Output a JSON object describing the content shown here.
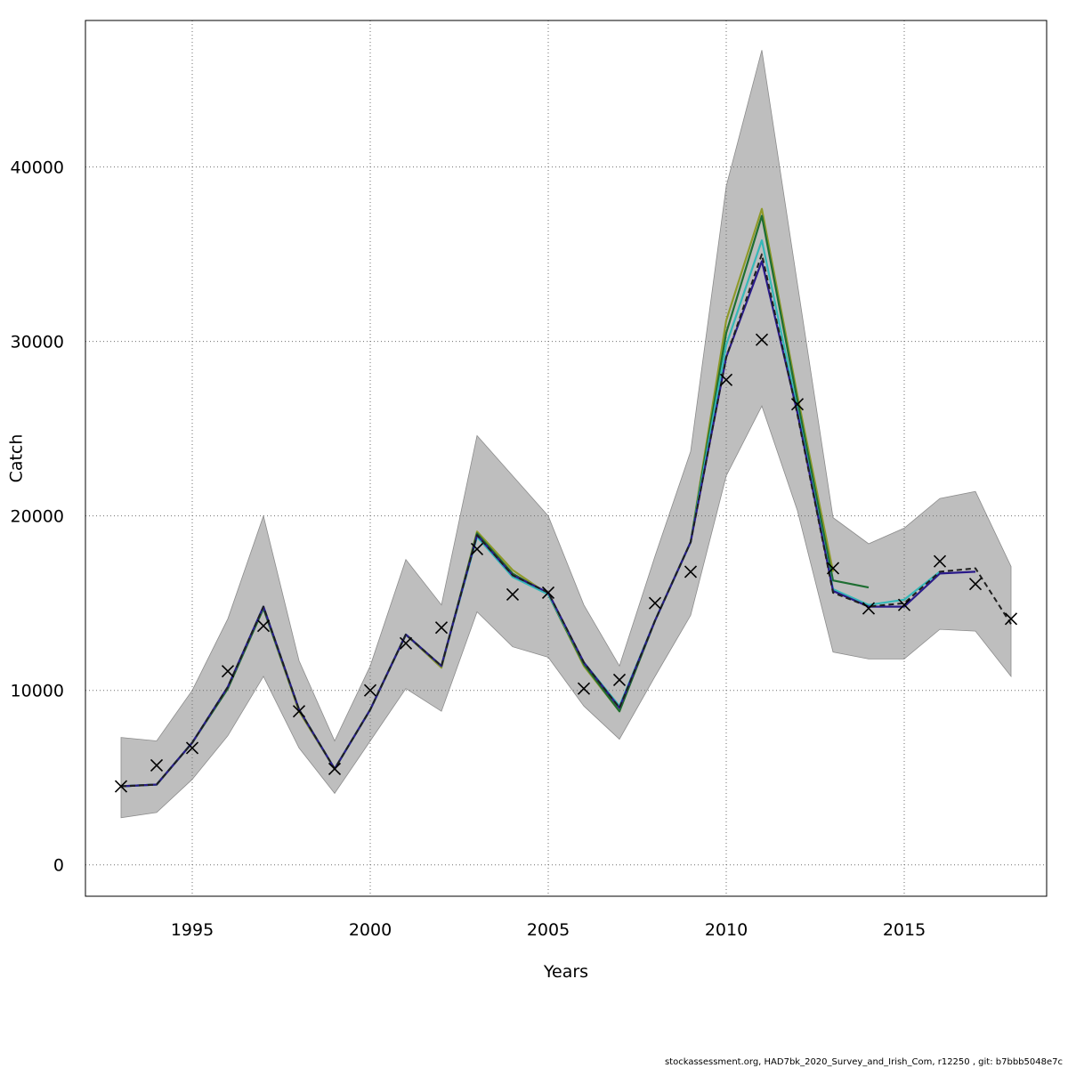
{
  "chart_data": {
    "type": "line",
    "title": "",
    "xlabel": "Years",
    "ylabel": "Catch",
    "xlim": [
      1992,
      2019
    ],
    "ylim": [
      -1800,
      48400
    ],
    "x_ticks": [
      1995,
      2000,
      2005,
      2010,
      2015
    ],
    "y_ticks": [
      0,
      10000,
      20000,
      30000,
      40000
    ],
    "grid": true,
    "legend": "none",
    "colors": {
      "band": "#bebebe",
      "band_edge": "#8c8c8c",
      "observed": "#000000",
      "grid": "#6e6e6e",
      "series": [
        "#1f1f1f",
        "#2a1a8a",
        "#35b8b8",
        "#1e6e32",
        "#8f9a2a"
      ]
    },
    "confidence_band": {
      "x": [
        1993,
        1994,
        1995,
        1996,
        1997,
        1998,
        1999,
        2000,
        2001,
        2002,
        2003,
        2004,
        2005,
        2006,
        2007,
        2008,
        2009,
        2010,
        2011,
        2012,
        2013,
        2014,
        2015,
        2016,
        2017,
        2018
      ],
      "upper": [
        7300,
        7100,
        10000,
        14100,
        20000,
        11700,
        7100,
        11400,
        17500,
        14900,
        24600,
        22300,
        20000,
        14900,
        11400,
        17700,
        23700,
        38900,
        46700,
        33300,
        19900,
        18400,
        19300,
        21000,
        21400,
        17100
      ],
      "lower": [
        2700,
        3000,
        4900,
        7400,
        10800,
        6700,
        4100,
        7100,
        10100,
        8800,
        14500,
        12500,
        11900,
        9100,
        7200,
        10800,
        14300,
        22300,
        26300,
        20300,
        12200,
        11800,
        11800,
        13500,
        13400,
        10800
      ]
    },
    "observed": {
      "x": [
        1993,
        1994,
        1995,
        1996,
        1997,
        1998,
        1999,
        2000,
        2001,
        2002,
        2003,
        2004,
        2005,
        2006,
        2007,
        2008,
        2009,
        2010,
        2011,
        2012,
        2013,
        2014,
        2015,
        2016,
        2017,
        2018
      ],
      "y": [
        4500,
        5700,
        6700,
        11100,
        13700,
        8800,
        5500,
        10000,
        12700,
        13600,
        18100,
        15500,
        15600,
        10100,
        10600,
        15000,
        16800,
        27800,
        30100,
        26400,
        17000,
        14700,
        14900,
        17400,
        16100,
        14100
      ]
    },
    "series": [
      {
        "x": [
          1993,
          1994,
          1995,
          1996,
          1997,
          1998,
          1999,
          2000,
          2001,
          2002,
          2003,
          2004,
          2005,
          2006,
          2007,
          2008,
          2009,
          2010,
          2011,
          2012,
          2013,
          2014,
          2015,
          2016,
          2017,
          2018
        ],
        "y": [
          4500,
          4600,
          7000,
          10200,
          14800,
          8900,
          5500,
          8900,
          13200,
          11400,
          18900,
          16600,
          15600,
          11600,
          9000,
          14000,
          18500,
          29100,
          35000,
          25800,
          15600,
          14800,
          15000,
          16800,
          17000,
          13800
        ],
        "style": "dashed"
      },
      {
        "x": [
          1993,
          1994,
          1995,
          1996,
          1997,
          1998,
          1999,
          2000,
          2001,
          2002,
          2003,
          2004,
          2005,
          2006,
          2007,
          2008,
          2009,
          2010,
          2011,
          2012,
          2013,
          2014,
          2015,
          2016,
          2017
        ],
        "y": [
          4500,
          4600,
          7000,
          10200,
          14800,
          8900,
          5500,
          8900,
          13200,
          11400,
          18900,
          16600,
          15600,
          11600,
          9000,
          14000,
          18500,
          29100,
          34600,
          25900,
          15700,
          14800,
          14800,
          16700,
          16800
        ],
        "style": "solid"
      },
      {
        "x": [
          1993,
          1994,
          1995,
          1996,
          1997,
          1998,
          1999,
          2000,
          2001,
          2002,
          2003,
          2004,
          2005,
          2006,
          2007,
          2008,
          2009,
          2010,
          2011,
          2012,
          2013,
          2014,
          2015,
          2016
        ],
        "y": [
          4500,
          4600,
          7000,
          10200,
          14800,
          8900,
          5500,
          8900,
          13200,
          11400,
          18800,
          16500,
          15500,
          11600,
          9100,
          14000,
          18500,
          29800,
          35800,
          26100,
          15800,
          14900,
          15200,
          16800
        ],
        "style": "solid"
      },
      {
        "x": [
          1993,
          1994,
          1995,
          1996,
          1997,
          1998,
          1999,
          2000,
          2001,
          2002,
          2003,
          2004,
          2005,
          2006,
          2007,
          2008,
          2009,
          2010,
          2011,
          2012,
          2013,
          2014
        ],
        "y": [
          4500,
          4600,
          7000,
          10100,
          14700,
          8900,
          5500,
          8900,
          13200,
          11400,
          19000,
          16700,
          15500,
          11500,
          8800,
          14000,
          18500,
          30500,
          37200,
          26600,
          16300,
          15900
        ],
        "style": "solid"
      },
      {
        "x": [
          1993,
          1994,
          1995,
          1996,
          1997,
          1998,
          1999,
          2000,
          2001,
          2002,
          2003,
          2004,
          2005,
          2006,
          2007,
          2008,
          2009,
          2010,
          2011,
          2012,
          2013
        ],
        "y": [
          4500,
          4600,
          7000,
          10100,
          14700,
          8800,
          5500,
          8900,
          13200,
          11300,
          19100,
          16900,
          15500,
          11400,
          8800,
          14000,
          18500,
          31200,
          37600,
          26900,
          16800
        ],
        "style": "solid"
      }
    ]
  },
  "footer": "stockassessment.org, HAD7bk_2020_Survey_and_Irish_Com, r12250 , git: b7bbb5048e7c"
}
